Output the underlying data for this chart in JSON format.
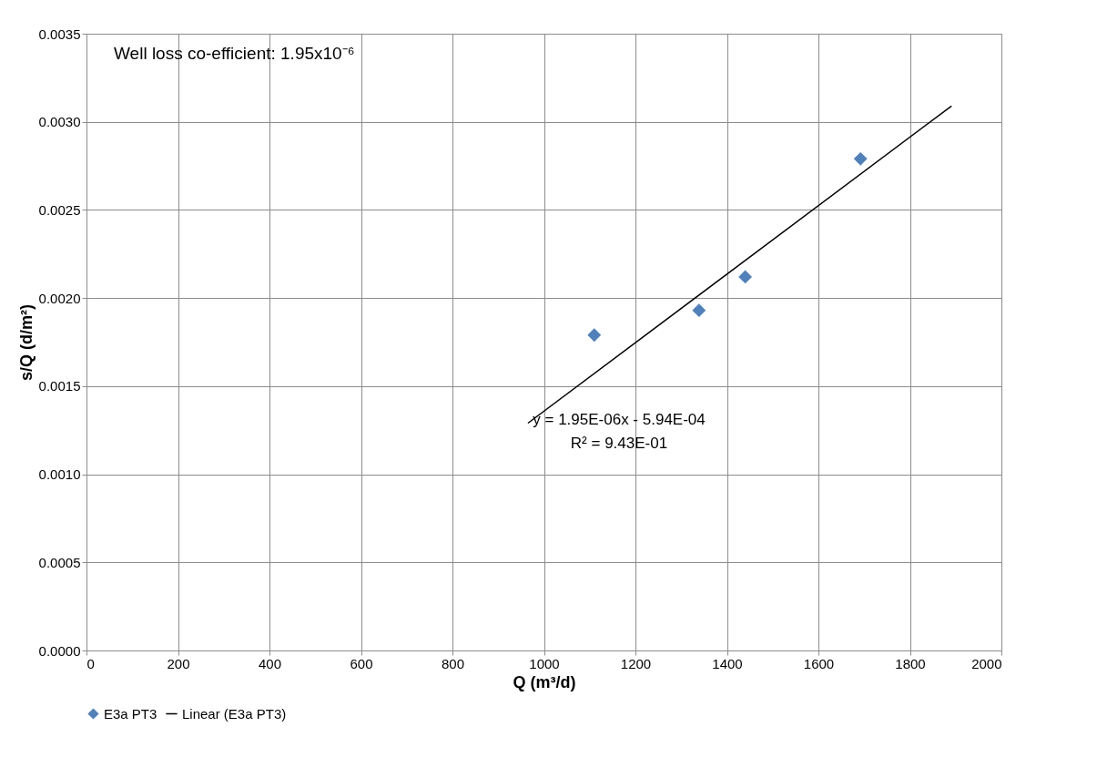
{
  "chart_data": {
    "type": "scatter",
    "xlabel": "Q (m³/d)",
    "ylabel": "s/Q (d/m²)",
    "xlim": [
      0,
      2000
    ],
    "xticks": [
      0,
      200,
      400,
      600,
      800,
      1000,
      1200,
      1400,
      1600,
      1800,
      2000
    ],
    "ylim": [
      0,
      0.0035
    ],
    "yticks": [
      {
        "value": 0,
        "label": "0.0000"
      },
      {
        "value": 0.0005,
        "label": "0.0005"
      },
      {
        "value": 0.001,
        "label": "0.0010"
      },
      {
        "value": 0.0015,
        "label": "0.0015"
      },
      {
        "value": 0.002,
        "label": "0.0020"
      },
      {
        "value": 0.0025,
        "label": "0.0025"
      },
      {
        "value": 0.003,
        "label": "0.0030"
      },
      {
        "value": 0.0035,
        "label": "0.0035"
      }
    ],
    "grid": true,
    "legend": "bottom",
    "series": [
      {
        "name": "E3a PT3",
        "marker": "diamond",
        "color": "#4f81bd",
        "x": [
          1110,
          1339,
          1440,
          1692
        ],
        "values": [
          0.00179,
          0.00193,
          0.00212,
          0.00279
        ]
      },
      {
        "name": "Linear (E3a PT3)",
        "type": "line",
        "color": "#000000",
        "x": [
          965,
          1891
        ],
        "values": [
          0.00129,
          0.00309
        ]
      }
    ],
    "annotations": [
      "Well loss co-efficient: 1.95x10⁻⁶",
      "y = 1.95E-06x - 5.94E-04",
      "R² = 9.43E-01"
    ]
  }
}
